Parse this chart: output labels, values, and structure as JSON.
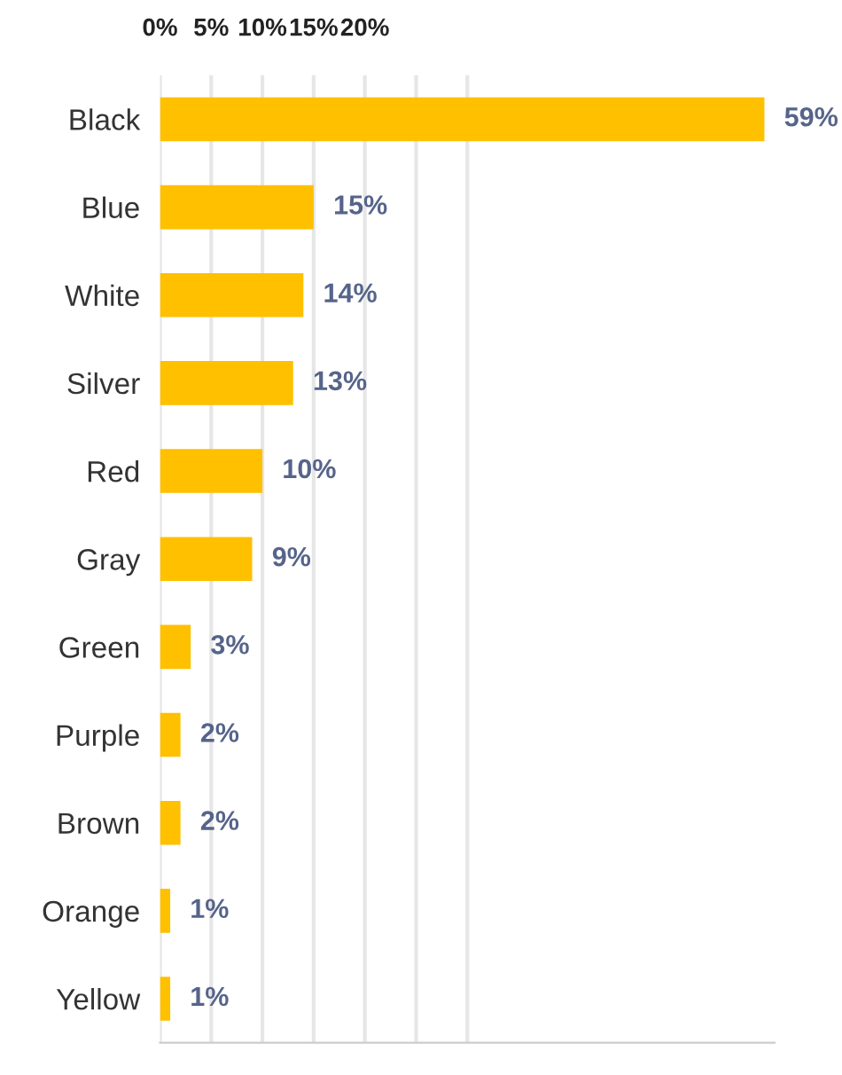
{
  "chart_data": {
    "type": "bar",
    "orientation": "horizontal",
    "categories": [
      "Black",
      "Blue",
      "White",
      "Silver",
      "Red",
      "Gray",
      "Green",
      "Purple",
      "Brown",
      "Orange",
      "Yellow"
    ],
    "values": [
      59,
      15,
      14,
      13,
      10,
      9,
      3,
      2,
      2,
      1,
      1
    ],
    "value_labels": [
      "59%",
      "15%",
      "14%",
      "13%",
      "10%",
      "9%",
      "3%",
      "2%",
      "2%",
      "1%",
      "1%"
    ],
    "color": "#ffc000",
    "xlim": [
      0,
      60
    ],
    "xticks": [
      {
        "value": 0,
        "label": "0%"
      },
      {
        "value": 5,
        "label": "5%"
      },
      {
        "value": 10,
        "label": "10%"
      },
      {
        "value": 15,
        "label": "15%"
      },
      {
        "value": 20,
        "label": "20%"
      },
      {
        "value": 25,
        "label": null
      },
      {
        "value": 30,
        "label": null
      }
    ],
    "grid": "x",
    "legend": false
  }
}
